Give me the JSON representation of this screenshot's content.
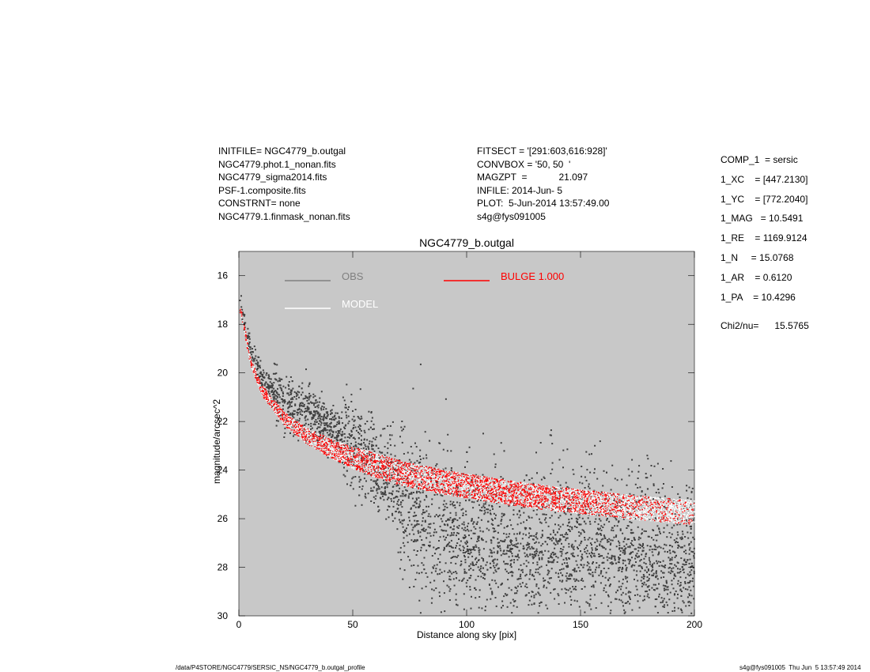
{
  "header": {
    "left_lines": [
      "INITFILE= NGC4779_b.outgal",
      "NGC4779.phot.1_nonan.fits",
      "NGC4779_sigma2014.fits",
      "PSF-1.composite.fits",
      "CONSTRNT= none",
      "NGC4779.1.finmask_nonan.fits"
    ],
    "mid_lines": [
      "FITSECT = '[291:603,616:928]'",
      "CONVBOX = '50, 50  '",
      "MAGZPT  =            21.097",
      "INFILE: 2014-Jun- 5",
      "PLOT:  5-Jun-2014 13:57:49.00",
      "s4g@fys091005"
    ],
    "params": [
      "COMP_1  = sersic",
      "1_XC    = [447.2130]",
      "1_YC    = [772.2040]",
      "1_MAG   = 10.5491",
      "1_RE    = 1169.9124",
      "1_N     = 15.0768",
      "1_AR    = 0.6120",
      "1_PA    = 10.4296"
    ],
    "chi": "Chi2/nu=      15.5765"
  },
  "footer": {
    "left": "/data/P4STORE/NGC4779/SERSIC_NS/NGC4779_b.outgal_profile",
    "right": "s4g@fys091005  Thu Jun  5 13:57:49 2014"
  },
  "colors": {
    "plot_bg": "#c8c8c8",
    "obs": "#404040",
    "model": "#ffffff",
    "bulge": "#ff0000",
    "obs_legend": "#808080"
  },
  "chart_data": {
    "type": "scatter",
    "title": "NGC4779_b.outgal",
    "xlabel": "Distance along sky [pix]",
    "ylabel": "magnitude/arcsec^2",
    "xlim": [
      0,
      200
    ],
    "ylim": [
      30,
      15
    ],
    "y_inverted": true,
    "xticks": [
      0,
      50,
      100,
      150,
      200
    ],
    "yticks": [
      16,
      18,
      20,
      22,
      24,
      26,
      28,
      30
    ],
    "grid": false,
    "legend": [
      {
        "name": "OBS",
        "color": "#808080"
      },
      {
        "name": "MODEL",
        "color": "#ffffff"
      },
      {
        "name": "BULGE  1.000",
        "color": "#ff0000"
      }
    ],
    "series": [
      {
        "name": "OBS",
        "description_points": [
          [
            1,
            17.3
          ],
          [
            5,
            19.0
          ],
          [
            10,
            20.2
          ],
          [
            20,
            21.3
          ],
          [
            30,
            21.5
          ],
          [
            40,
            22.3
          ],
          [
            50,
            22.9
          ],
          [
            60,
            23.8
          ],
          [
            70,
            24.6
          ],
          [
            80,
            25.3
          ],
          [
            100,
            26.2
          ],
          [
            125,
            27.0
          ],
          [
            150,
            26.5
          ],
          [
            175,
            26.8
          ],
          [
            200,
            27.3
          ]
        ]
      },
      {
        "name": "MODEL",
        "x": [
          1,
          5,
          10,
          20,
          30,
          40,
          50,
          60,
          70,
          80,
          90,
          100,
          120,
          140,
          160,
          180,
          200
        ],
        "y": [
          17.5,
          19.5,
          20.7,
          21.9,
          22.6,
          23.1,
          23.5,
          23.8,
          24.1,
          24.3,
          24.5,
          24.65,
          24.95,
          25.2,
          25.4,
          25.6,
          25.75
        ]
      },
      {
        "name": "BULGE  1.000",
        "x": [
          1,
          5,
          10,
          20,
          30,
          40,
          50,
          60,
          70,
          80,
          90,
          100,
          120,
          140,
          160,
          180,
          200
        ],
        "y": [
          17.5,
          19.5,
          20.7,
          21.9,
          22.6,
          23.1,
          23.5,
          23.8,
          24.1,
          24.3,
          24.5,
          24.65,
          24.95,
          25.2,
          25.4,
          25.6,
          25.75
        ]
      }
    ]
  }
}
